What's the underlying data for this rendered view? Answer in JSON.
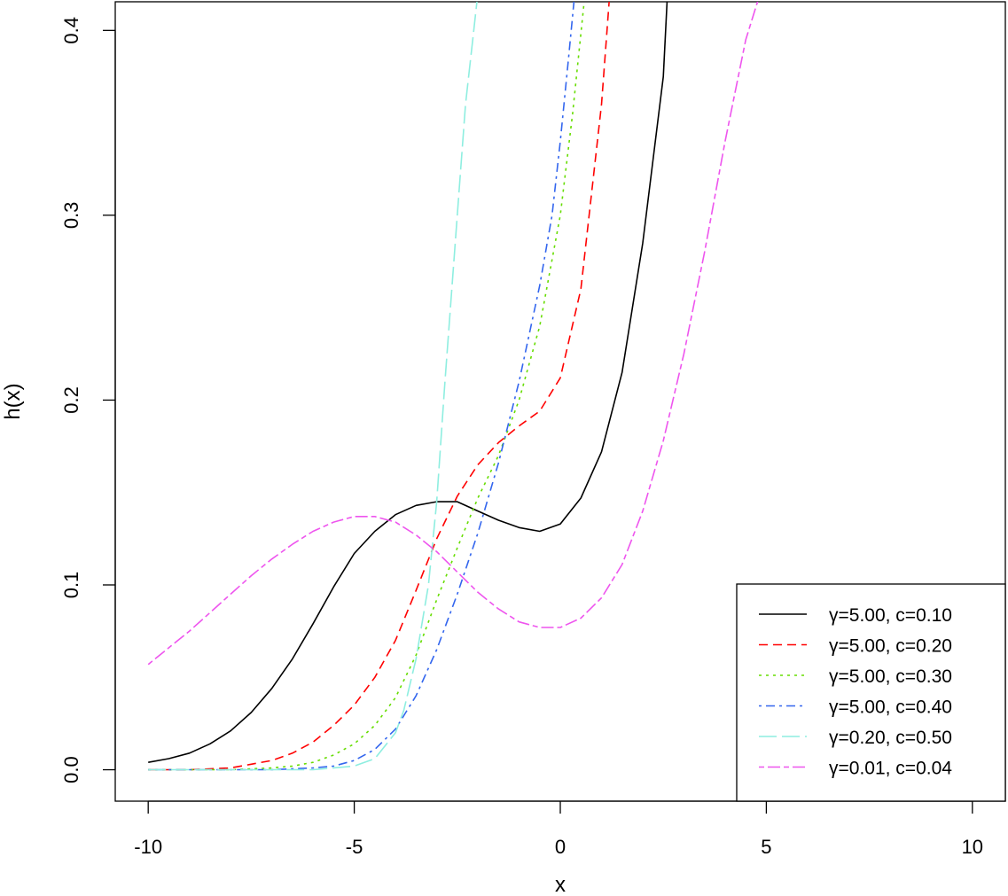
{
  "chart_data": {
    "type": "line",
    "title": "",
    "xlabel": "x",
    "ylabel": "h(x)",
    "xlim": [
      -10.8,
      10.8
    ],
    "ylim": [
      -0.017,
      0.4155
    ],
    "x_ticks": [
      -10,
      -5,
      0,
      5,
      10
    ],
    "x_tick_labels": [
      "-10",
      "-5",
      "0",
      "5",
      "10"
    ],
    "y_ticks": [
      0.0,
      0.1,
      0.2,
      0.3,
      0.4
    ],
    "y_tick_labels": [
      "0.0",
      "0.1",
      "0.2",
      "0.3",
      "0.4"
    ],
    "grid": false,
    "legend_position": "bottom-right",
    "series": [
      {
        "name": "γ=5.00, c=0.10",
        "color": "#000000",
        "dash": "solid",
        "x": [
          -10,
          -9.5,
          -9,
          -8.5,
          -8,
          -7.5,
          -7,
          -6.5,
          -6,
          -5.5,
          -5,
          -4.5,
          -4,
          -3.5,
          -3,
          -2.5,
          -2,
          -1.5,
          -1,
          -0.5,
          0,
          0.5,
          1,
          1.5,
          2,
          2.5,
          2.6
        ],
        "y": [
          0.004,
          0.006,
          0.009,
          0.014,
          0.021,
          0.031,
          0.044,
          0.06,
          0.079,
          0.099,
          0.117,
          0.129,
          0.138,
          0.143,
          0.145,
          0.145,
          0.14,
          0.135,
          0.131,
          0.129,
          0.133,
          0.147,
          0.172,
          0.215,
          0.285,
          0.375,
          0.42
        ]
      },
      {
        "name": "γ=5.00, c=0.20",
        "color": "#ff0000",
        "dash": "dashed",
        "x": [
          -10,
          -9,
          -8,
          -7.5,
          -7,
          -6.5,
          -6,
          -5.5,
          -5,
          -4.5,
          -4,
          -3.5,
          -3,
          -2.5,
          -2,
          -1.5,
          -1,
          -0.5,
          0,
          0.5,
          1,
          1.2
        ],
        "y": [
          0.0,
          0.0,
          0.001,
          0.003,
          0.005,
          0.009,
          0.015,
          0.024,
          0.035,
          0.05,
          0.07,
          0.097,
          0.125,
          0.148,
          0.165,
          0.177,
          0.186,
          0.194,
          0.212,
          0.26,
          0.36,
          0.42
        ]
      },
      {
        "name": "γ=5.00, c=0.30",
        "color": "#66dd00",
        "dash": "dotted",
        "x": [
          -10,
          -9,
          -8,
          -7,
          -6.5,
          -6,
          -5.5,
          -5,
          -4.5,
          -4,
          -3.5,
          -3,
          -2.5,
          -2,
          -1.5,
          -1,
          -0.5,
          0,
          0.3,
          0.6
        ],
        "y": [
          0.0,
          0.0,
          0.0,
          0.001,
          0.002,
          0.004,
          0.008,
          0.014,
          0.024,
          0.039,
          0.062,
          0.092,
          0.12,
          0.147,
          0.17,
          0.2,
          0.24,
          0.3,
          0.355,
          0.42
        ]
      },
      {
        "name": "γ=5.00, c=0.40",
        "color": "#3366ee",
        "dash": "dotdash",
        "x": [
          -10,
          -8,
          -7,
          -6,
          -5.5,
          -5,
          -4.5,
          -4,
          -3.5,
          -3,
          -2.5,
          -2,
          -1.5,
          -1,
          -0.5,
          -0.2,
          0,
          0.2,
          0.35
        ],
        "y": [
          0.0,
          0.0,
          0.0,
          0.001,
          0.002,
          0.005,
          0.011,
          0.022,
          0.04,
          0.065,
          0.095,
          0.128,
          0.166,
          0.21,
          0.262,
          0.3,
          0.34,
          0.385,
          0.42
        ]
      },
      {
        "name": "γ=0.20, c=0.50",
        "color": "#8eeee0",
        "dash": "longdash",
        "x": [
          -10,
          -8,
          -6,
          -5,
          -4.5,
          -4,
          -3.8,
          -3.5,
          -3.2,
          -3,
          -2.8,
          -2.5,
          -2.3,
          -2.1,
          -2.0
        ],
        "y": [
          0.0,
          0.0,
          0.0,
          0.002,
          0.006,
          0.02,
          0.032,
          0.06,
          0.1,
          0.145,
          0.21,
          0.3,
          0.36,
          0.4,
          0.42
        ]
      },
      {
        "name": "γ=0.01, c=0.04",
        "color": "#ee55ee",
        "dash": "twodash",
        "x": [
          -10,
          -9.5,
          -9,
          -8.5,
          -8,
          -7.5,
          -7,
          -6.5,
          -6,
          -5.5,
          -5,
          -4.5,
          -4,
          -3.5,
          -3,
          -2.5,
          -2,
          -1.5,
          -1,
          -0.5,
          0,
          0.5,
          1,
          1.5,
          2,
          2.5,
          3,
          3.5,
          4,
          4.5,
          4.85
        ],
        "y": [
          0.057,
          0.066,
          0.075,
          0.085,
          0.095,
          0.105,
          0.114,
          0.122,
          0.129,
          0.134,
          0.137,
          0.137,
          0.134,
          0.127,
          0.118,
          0.107,
          0.096,
          0.087,
          0.08,
          0.077,
          0.077,
          0.082,
          0.093,
          0.111,
          0.14,
          0.178,
          0.225,
          0.28,
          0.34,
          0.395,
          0.42
        ]
      }
    ]
  }
}
